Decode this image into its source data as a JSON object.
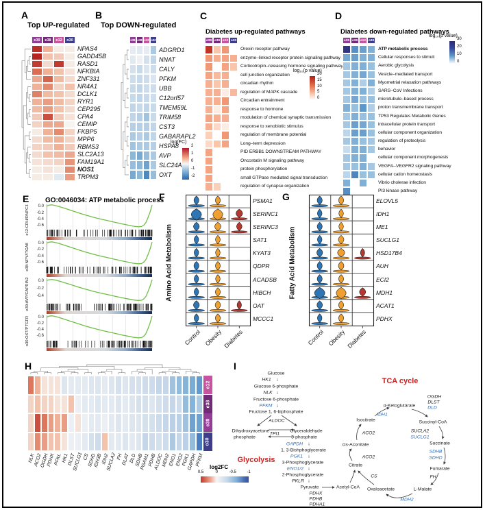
{
  "samples": [
    "e39",
    "e38",
    "e12",
    "o30"
  ],
  "sample_colors": {
    "e39": "#933e96",
    "e38": "#722a78",
    "e12": "#c6549e",
    "o30": "#3e3d8c"
  },
  "colors": {
    "up_max": "#b52622",
    "down_max": "#3071b0",
    "pathway_up_max": "#b02018",
    "pathway_down_max": "#2e2a72",
    "gsea_curve": "#6fbf44",
    "violin_control": "#2e75b5",
    "violin_obesity": "#f0a030",
    "violin_diabetes": "#b5382f",
    "enzyme_blue": "#2b6cb8",
    "section_red": "#cc2222"
  },
  "panelA": {
    "label": "A",
    "title": "Top UP-regulated",
    "bold_gene": "NOS1",
    "genes": [
      "NPAS4",
      "GADD45B",
      "RASD1",
      "NFKBIA",
      "ZNF331",
      "NR4A1",
      "DCLK1",
      "RYR1",
      "CEP295",
      "CPA4",
      "CEMIP",
      "FKBP5",
      "MPP6",
      "RBMS3",
      "SLC2A13",
      "FAM19A1",
      "NOS1",
      "TRPM3"
    ],
    "values": [
      [
        2.1,
        0.8,
        0.1,
        0.1
      ],
      [
        2.2,
        0.6,
        0.5,
        0.1
      ],
      [
        2.0,
        0.3,
        2.0,
        0.1
      ],
      [
        1.5,
        0.8,
        0.6,
        0.2
      ],
      [
        0.9,
        1.6,
        0.7,
        0.3
      ],
      [
        0.8,
        1.2,
        0.4,
        0.6
      ],
      [
        1.3,
        0.7,
        0.6,
        0.3
      ],
      [
        0.8,
        1.0,
        0.7,
        0.4
      ],
      [
        0.7,
        1.0,
        0.6,
        0.3
      ],
      [
        0.5,
        1.8,
        0.5,
        0.2
      ],
      [
        0.4,
        0.9,
        0.9,
        0.0
      ],
      [
        0.1,
        0.8,
        1.2,
        0.4
      ],
      [
        0.3,
        0.7,
        0.8,
        0.4
      ],
      [
        0.4,
        0.5,
        0.8,
        0.5
      ],
      [
        0.3,
        0.6,
        0.7,
        0.9
      ],
      [
        0.2,
        0.3,
        0.4,
        1.1
      ],
      [
        0.1,
        0.2,
        0.1,
        1.2
      ],
      [
        0.1,
        0.1,
        -0.3,
        1.0
      ]
    ]
  },
  "panelB": {
    "label": "B",
    "title": "Top DOWN-regulated",
    "genes": [
      "ADGRD1",
      "NNAT",
      "CALY",
      "PFKM",
      "UBB",
      "C12orf57",
      "TMEM59L",
      "TRIM58",
      "CST3",
      "GABARAPL2",
      "HSPA8",
      "AVP",
      "SLC24A3",
      "OXT"
    ],
    "values": [
      [
        -0.2,
        -0.3,
        -0.2,
        -1.0
      ],
      [
        -0.3,
        -0.1,
        -0.5,
        -0.8
      ],
      [
        -0.5,
        -0.7,
        -0.4,
        -0.6
      ],
      [
        -0.6,
        -0.7,
        -0.6,
        -0.4
      ],
      [
        -0.7,
        -0.8,
        -0.6,
        -0.6
      ],
      [
        -0.7,
        -0.8,
        -0.7,
        -0.6
      ],
      [
        -0.8,
        -0.7,
        -0.8,
        -0.7
      ],
      [
        -0.8,
        -0.9,
        -1.1,
        -0.7
      ],
      [
        -0.9,
        -0.9,
        -0.9,
        -0.8
      ],
      [
        -1.0,
        -0.9,
        -1.0,
        -0.8
      ],
      [
        -1.1,
        -1.0,
        -1.0,
        -0.9
      ],
      [
        -1.3,
        -1.5,
        -1.2,
        -1.0
      ],
      [
        -1.2,
        -1.3,
        -1.6,
        -1.0
      ],
      [
        -1.5,
        -1.3,
        -1.9,
        -1.2
      ]
    ],
    "colorbar": {
      "title": "log(FC)",
      "ticks": [
        "2",
        "1",
        "0",
        "-1",
        "-2"
      ]
    }
  },
  "panelC": {
    "label": "C",
    "title": "Diabetes up-regulated pathways",
    "pathways": [
      "Orexin receptor pathway",
      "enzyme–linked receptor protein signaling pathway",
      "Corticotropin–releasing hormone signaling pathway",
      "cell junction organization",
      "circadian rhythm",
      "regulation of MAPK cascade",
      "Circadian entrainment",
      "response to hormone",
      "modulation of chemical synaptic transmission",
      "response to xenobiotic stimulus",
      "regulation of membrane potential",
      "Long–term depression",
      "PID ERBB1 DOWNSTREAM PATHWAY",
      "Oncostatin M signaling pathway",
      "protein phosphorylation",
      "small GTPase mediated signal transduction",
      "regulation of synapse organization"
    ],
    "values": [
      [
        18,
        6,
        10,
        0
      ],
      [
        10,
        8,
        9,
        8
      ],
      [
        10,
        0,
        9,
        6
      ],
      [
        9,
        7,
        8,
        0
      ],
      [
        8,
        6,
        8,
        0
      ],
      [
        8,
        8,
        2,
        7
      ],
      [
        8,
        8,
        10,
        0
      ],
      [
        8,
        2,
        9,
        0
      ],
      [
        9,
        8,
        8,
        0
      ],
      [
        8,
        4,
        2,
        0
      ],
      [
        5,
        0,
        10,
        0
      ],
      [
        4,
        6,
        9,
        0
      ],
      [
        9,
        0,
        0,
        0
      ],
      [
        9,
        0,
        0,
        0
      ],
      [
        9,
        0,
        0,
        0
      ],
      [
        9,
        0,
        0,
        0
      ],
      [
        8,
        5,
        0,
        0
      ]
    ],
    "colorbar": {
      "title": "log₁₀(p value)",
      "ticks": [
        "20",
        "15",
        "10",
        "5",
        "0"
      ]
    }
  },
  "panelD": {
    "label": "D",
    "title": "Diabetes down-regulated pathways",
    "bold_pathway": "ATP metabolic process",
    "pathways": [
      "ATP metabolic process",
      "Cellular responses to stimuli",
      "Aerobic glycolysis",
      "Vesicle–mediated transport",
      "Myometrial relaxation pathways",
      "SARS–CoV Infections",
      "microtubule–based process",
      "proton transmembrane transport",
      "TP53 Regulates Metabolic Genes",
      "intracellular protein transport",
      "cellular component organization",
      "regulation of proteolysis",
      "behavior",
      "cellular component morphogenesis",
      "VEGFA–VEGFR2 signaling pathway",
      "cellular cation homeostasis",
      "Vibrio cholerae infection",
      "PI3 kinase pathway"
    ],
    "values": [
      [
        28,
        16,
        14,
        12
      ],
      [
        13,
        14,
        12,
        12
      ],
      [
        9,
        12,
        12,
        10
      ],
      [
        9,
        12,
        13,
        10
      ],
      [
        9,
        12,
        8,
        12
      ],
      [
        9,
        12,
        12,
        8
      ],
      [
        9,
        13,
        10,
        10
      ],
      [
        12,
        10,
        15,
        8
      ],
      [
        9,
        12,
        10,
        10
      ],
      [
        9,
        14,
        13,
        10
      ],
      [
        7,
        14,
        14,
        10
      ],
      [
        9,
        12,
        10,
        9
      ],
      [
        6,
        12,
        12,
        9
      ],
      [
        9,
        12,
        12,
        0
      ],
      [
        9,
        10,
        12,
        9
      ],
      [
        7,
        17,
        10,
        10
      ],
      [
        12,
        0,
        12,
        0
      ],
      [
        16,
        0,
        0,
        0
      ]
    ],
    "colorbar": {
      "title": "log₁₀(p value)",
      "ticks": [
        "30",
        "20",
        "10",
        "0"
      ]
    }
  },
  "panelE": {
    "label": "E",
    "title": "GO:0046034: ATP metabolic process",
    "subplots": [
      {
        "name": "e12:CRH/RNPC3",
        "yticks": [
          "0.0",
          "-0.2",
          "-0.4",
          "-0.6"
        ],
        "depth": 0.65
      },
      {
        "name": "e38:NPY/ITGA8",
        "yticks": [
          "0.0",
          "-0.2",
          "-0.4",
          "-0.6"
        ],
        "depth": 0.66
      },
      {
        "name": "e39:AVP/CAPRIN2",
        "yticks": [
          "0.0",
          "-0.2",
          "-0.4"
        ],
        "depth": 0.52
      },
      {
        "name": "o30:OXT/PTGFR",
        "yticks": [
          "0.0",
          "-0.2",
          "-0.4",
          "-0.6"
        ],
        "depth": 0.68
      }
    ],
    "curve": [
      [
        0,
        -0.02
      ],
      [
        0.02,
        -0.06
      ],
      [
        0.05,
        -0.08
      ],
      [
        0.09,
        -0.04
      ],
      [
        0.13,
        0.02
      ],
      [
        0.18,
        0.1
      ],
      [
        0.24,
        0.2
      ],
      [
        0.3,
        0.3
      ],
      [
        0.37,
        0.41
      ],
      [
        0.44,
        0.51
      ],
      [
        0.51,
        0.6
      ],
      [
        0.58,
        0.68
      ],
      [
        0.65,
        0.76
      ],
      [
        0.72,
        0.84
      ],
      [
        0.78,
        0.9
      ],
      [
        0.83,
        0.95
      ],
      [
        0.87,
        0.97
      ],
      [
        0.9,
        0.96
      ],
      [
        0.92,
        0.9
      ],
      [
        0.94,
        0.78
      ],
      [
        0.96,
        0.55
      ],
      [
        0.98,
        0.28
      ],
      [
        1,
        -0.07
      ]
    ]
  },
  "panelF": {
    "label": "F",
    "ylabel": "Amino Acid Metabolism",
    "categories": [
      "Control",
      "Obesity",
      "Diabetes"
    ],
    "genes": [
      "PSMA1",
      "SERINC1",
      "SERINC3",
      "SAT1",
      "KYAT3",
      "QDPR",
      "ACADSB",
      "HIBCH",
      "OAT",
      "MCCC1"
    ],
    "sizes": [
      [
        0.35,
        0.35,
        0
      ],
      [
        1,
        0.95,
        0.55
      ],
      [
        0.45,
        0.5,
        0.4
      ],
      [
        0.3,
        0.32,
        0
      ],
      [
        0.3,
        0.3,
        0
      ],
      [
        0.36,
        0.34,
        0
      ],
      [
        0.3,
        0.3,
        0
      ],
      [
        0.3,
        0.36,
        0
      ],
      [
        0.46,
        0.4,
        0.28
      ],
      [
        0.3,
        0.36,
        0
      ]
    ]
  },
  "panelG": {
    "label": "G",
    "ylabel": "Fatty Acid Metabolism",
    "categories": [
      "Control",
      "Obesity",
      "Diabetes"
    ],
    "genes": [
      "ELOVL5",
      "IDH1",
      "ME1",
      "SUCLG1",
      "HSD17B4",
      "AUH",
      "ECI2",
      "MDH1",
      "ACAT1",
      "PDHX"
    ],
    "sizes": [
      [
        0.36,
        0.36,
        0
      ],
      [
        0.3,
        0.3,
        0
      ],
      [
        0.36,
        0.3,
        0
      ],
      [
        0.3,
        0.42,
        0
      ],
      [
        0.46,
        0.62,
        0.26
      ],
      [
        0.36,
        0.42,
        0
      ],
      [
        0.36,
        0.36,
        0
      ],
      [
        1,
        0.95,
        0.5
      ],
      [
        0.42,
        0.36,
        0
      ],
      [
        0.3,
        0.36,
        0
      ]
    ]
  },
  "panelH": {
    "label": "H",
    "rows": [
      "e12",
      "e38",
      "e39",
      "o30"
    ],
    "genes": [
      "NLK",
      "ACO2",
      "OGDH",
      "PDHX",
      "PFKL",
      "HK1",
      "DLST",
      "SUCLG1",
      "CS",
      "SDHD",
      "IDH3B",
      "IDH2",
      "SUCLA2",
      "FH",
      "DLAT",
      "DLD",
      "SDHB",
      "PGAM1",
      "PDHB",
      "ALDOC",
      "MDH2",
      "ENO1",
      "ENO2",
      "PGK1",
      "GAPDH",
      "PFKM"
    ],
    "values": [
      [
        0.35,
        0.2,
        0.05,
        0.05,
        0.05,
        -0.15,
        -0.1,
        -0.1,
        -0.1,
        -0.15,
        -0.15,
        -0.1,
        -0.15,
        -0.2,
        -0.15,
        -0.2,
        -0.2,
        -0.25,
        -0.25,
        -0.3,
        -0.3,
        -0.45,
        -0.5,
        -0.55,
        -0.6,
        -0.7
      ],
      [
        0.1,
        0.15,
        0.1,
        0.1,
        0.05,
        0.05,
        0.15,
        -0.05,
        -0.1,
        -0.1,
        -0.15,
        -0.1,
        -0.1,
        -0.15,
        -0.1,
        -0.15,
        -0.2,
        -0.2,
        -0.15,
        -0.2,
        -0.25,
        -0.3,
        -0.25,
        -0.5,
        -0.55,
        -0.4
      ],
      [
        0.1,
        0.45,
        0.35,
        0.25,
        0.2,
        0.25,
        -0.05,
        0.05,
        -0.05,
        -0.1,
        -0.1,
        -0.05,
        -0.1,
        -0.15,
        -0.1,
        -0.15,
        -0.15,
        -0.2,
        -0.2,
        -0.25,
        -0.3,
        -0.35,
        -0.35,
        -0.45,
        -0.65,
        -0.65
      ],
      [
        0.1,
        0.3,
        0.25,
        0.15,
        0.15,
        0.05,
        -0.05,
        -0.05,
        -0.1,
        -0.2,
        -0.25,
        0.15,
        -0.1,
        -0.1,
        -0.15,
        -0.1,
        -0.15,
        -0.3,
        -0.25,
        -0.2,
        -0.25,
        -0.4,
        -0.3,
        -0.35,
        -0.5,
        -0.85
      ]
    ],
    "colorbar": {
      "title": "log2FC",
      "ticks": [
        "0.5",
        "0",
        "-0.5",
        "-1"
      ]
    }
  },
  "panelI": {
    "label": "I",
    "glycolysis_title": "Glycolysis",
    "tca_title": "TCA cycle",
    "nodes": [
      [
        "Glucose",
        403,
        545,
        "met"
      ],
      [
        "HK1",
        389,
        554,
        "enz"
      ],
      [
        "↓",
        405,
        554,
        "dn"
      ],
      [
        "Glucose 6-phosphate",
        403,
        564,
        "met"
      ],
      [
        "NLK",
        391,
        573,
        "enz"
      ],
      [
        "↓",
        405,
        573,
        "dn"
      ],
      [
        "Fructose 6-phosphate",
        403,
        583,
        "met"
      ],
      [
        "PFKM",
        388,
        592,
        "enzb"
      ],
      [
        "↓",
        405,
        592,
        "dn"
      ],
      [
        "Fructose 1, 6-biphosphate",
        403,
        601,
        "met"
      ],
      [
        "ALDOC",
        404,
        614,
        "enz"
      ],
      [
        "Dihydroxyacetone",
        366,
        629,
        "met"
      ],
      [
        "phosphate",
        357,
        638,
        "met"
      ],
      [
        "TPI1",
        401,
        633,
        "enz"
      ],
      [
        "Glyceraldehyde",
        447,
        629,
        "met"
      ],
      [
        "3-phosphate",
        444,
        638,
        "met"
      ],
      [
        "GAPDH",
        430,
        648,
        "enzb"
      ],
      [
        "↓",
        451,
        648,
        "dn"
      ],
      [
        "1, 3-Bishphoglycerate",
        443,
        657,
        "met"
      ],
      [
        "PGK1",
        433,
        666,
        "enzb"
      ],
      [
        "↓",
        451,
        666,
        "dn"
      ],
      [
        "3-Phosphoglycerate",
        442,
        675,
        "met"
      ],
      [
        "ENO1/2",
        431,
        684,
        "enzb"
      ],
      [
        "↓",
        451,
        684,
        "dn"
      ],
      [
        "2-Phosphoglycerate",
        442,
        693,
        "met"
      ],
      [
        "PKLR",
        435,
        702,
        "enz"
      ],
      [
        "↓",
        451,
        702,
        "dn"
      ],
      [
        "Pyruvate",
        452,
        711,
        "met"
      ],
      [
        "Acetyl-CoA",
        508,
        711,
        "met"
      ],
      [
        "PDHX",
        461,
        720,
        "enz"
      ],
      [
        "PDHB",
        461,
        728,
        "enz"
      ],
      [
        "PDHA1",
        463,
        736,
        "enz"
      ],
      [
        "Glycolysis",
        374,
        671,
        "rtitle"
      ],
      [
        "TCA cycle",
        584,
        556,
        "rtitle"
      ],
      [
        "α-Ketoglutarate",
        583,
        592,
        "met"
      ],
      [
        "OGDH",
        634,
        579,
        "enz"
      ],
      [
        "DLST",
        633,
        587,
        "enz"
      ],
      [
        "DLD",
        631,
        595,
        "enzb"
      ],
      [
        "Succinyl-CoA",
        632,
        616,
        "met"
      ],
      [
        "SUCLA2",
        613,
        629,
        "enz"
      ],
      [
        "SUCLG1",
        613,
        638,
        "enzb"
      ],
      [
        "Succinate",
        642,
        647,
        "met"
      ],
      [
        "SDHB",
        636,
        659,
        "enzb"
      ],
      [
        "SDHD",
        636,
        668,
        "enzb"
      ],
      [
        "Fumarate",
        642,
        684,
        "met"
      ],
      [
        "FH",
        632,
        696,
        "enz"
      ],
      [
        "L-Malate",
        617,
        714,
        "met"
      ],
      [
        "MDH2",
        594,
        729,
        "enzb"
      ],
      [
        "Oxaloacetate",
        556,
        714,
        "met"
      ],
      [
        "CS",
        546,
        695,
        "enz"
      ],
      [
        "Citrate",
        519,
        679,
        "met"
      ],
      [
        "ACO2",
        538,
        667,
        "enz"
      ],
      [
        "cis-Aconitate",
        519,
        649,
        "met"
      ],
      [
        "ACO2",
        538,
        632,
        "enz"
      ],
      [
        "Isocitrate",
        534,
        613,
        "met"
      ],
      [
        "IDH1",
        558,
        605,
        "enzb"
      ]
    ]
  }
}
